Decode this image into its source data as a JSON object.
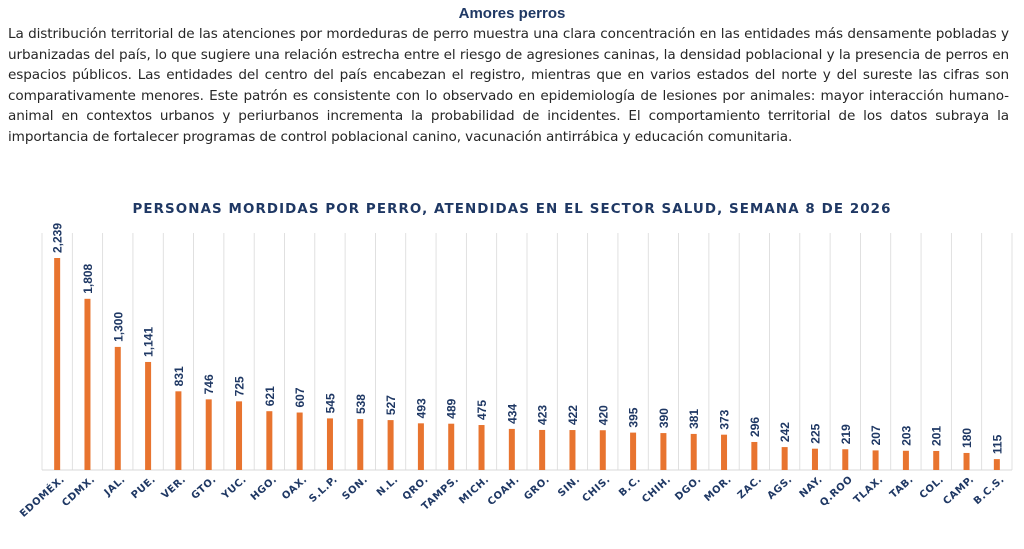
{
  "document": {
    "heading": "Amores perros",
    "paragraph": "La distribución territorial de las atenciones por mordeduras de perro muestra una clara concentración en las entidades más densamente pobladas y urbanizadas del país, lo que sugiere una relación estrecha entre el riesgo de agresiones caninas, la densidad poblacional y la presencia de perros en espacios públicos. Las entidades del centro del país encabezan el registro, mientras que en varios estados del norte y del sureste las cifras son comparativamente menores. Este patrón es consistente con lo observado en epidemiología de lesiones por animales: mayor interacción humano-animal en contextos urbanos y periurbanos incrementa la probabilidad de incidentes. El comportamiento territorial de los datos subraya la importancia de fortalecer programas de control poblacional canino, vacunación antirrábica y educación comunitaria."
  },
  "chart_data": {
    "type": "bar",
    "title": "PERSONAS MORDIDAS POR PERRO, ATENDIDAS EN EL SECTOR SALUD, SEMANA 8 DE 2026",
    "xlabel": "",
    "ylabel": "",
    "ylim": [
      0,
      2500
    ],
    "grid": "vertical",
    "legend": "none",
    "bar_color": "#e8742f",
    "label_color": "#1f3864",
    "grid_color": "#d9d9d9",
    "categories": [
      "EDOMÉX.",
      "CDMX.",
      "JAL.",
      "PUE.",
      "VER.",
      "GTO.",
      "YUC.",
      "HGO.",
      "OAX.",
      "S.L.P.",
      "SON.",
      "N.L.",
      "QRO.",
      "TAMPS.",
      "MICH.",
      "COAH.",
      "GRO.",
      "SIN.",
      "CHIS.",
      "B.C.",
      "CHIH.",
      "DGO.",
      "MOR.",
      "ZAC.",
      "AGS.",
      "NAY.",
      "Q.ROO",
      "TLAX.",
      "TAB.",
      "COL.",
      "CAMP.",
      "B.C.S."
    ],
    "values": [
      2239,
      1808,
      1300,
      1141,
      831,
      746,
      725,
      621,
      607,
      545,
      538,
      527,
      493,
      489,
      475,
      434,
      423,
      422,
      420,
      395,
      390,
      381,
      373,
      296,
      242,
      225,
      219,
      207,
      203,
      201,
      180,
      115
    ],
    "data_labels": [
      "2,239",
      "1,808",
      "1,300",
      "1,141",
      "831",
      "746",
      "725",
      "621",
      "607",
      "545",
      "538",
      "527",
      "493",
      "489",
      "475",
      "434",
      "423",
      "422",
      "420",
      "395",
      "390",
      "381",
      "373",
      "296",
      "242",
      "225",
      "219",
      "207",
      "203",
      "201",
      "180",
      "115"
    ]
  }
}
